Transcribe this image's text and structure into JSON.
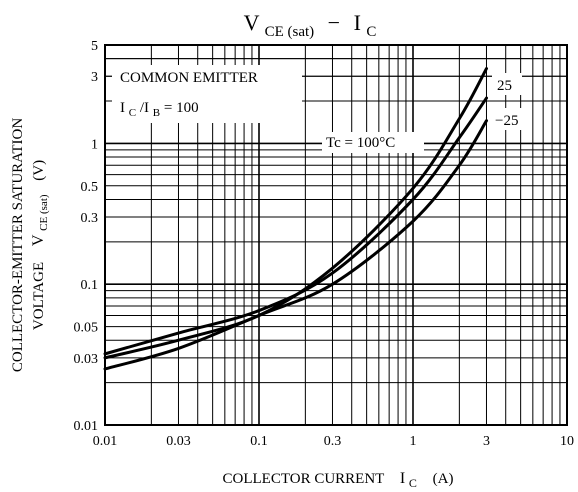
{
  "chart_data": {
    "type": "line",
    "title": {
      "main": "V",
      "subscript": "CE (sat)",
      "separator": "−",
      "second_main": "I",
      "second_subscript": "C"
    },
    "xlabel": {
      "text": "COLLECTOR CURRENT",
      "symbol_main": "I",
      "symbol_subscript": "C",
      "unit": "(A)"
    },
    "ylabel": {
      "line1": "COLLECTOR-EMITTER SATURATION",
      "line2_prefix": "VOLTAGE",
      "symbol_main": "V",
      "symbol_subscript": "CE (sat)",
      "unit": "(V)"
    },
    "x_scale": "log",
    "y_scale": "log",
    "xlim": [
      0.01,
      10
    ],
    "ylim": [
      0.01,
      5
    ],
    "x_ticks": [
      0.01,
      0.03,
      0.1,
      0.3,
      1,
      3,
      10
    ],
    "x_tick_labels": [
      "0.01",
      "0.03",
      "0.1",
      "0.3",
      "1",
      "3",
      "10"
    ],
    "y_ticks": [
      0.01,
      0.03,
      0.05,
      0.1,
      0.3,
      0.5,
      1,
      3,
      5
    ],
    "y_tick_labels": [
      "0.01",
      "0.03",
      "0.05",
      "0.1",
      "0.3",
      "0.5",
      "1",
      "3",
      "5"
    ],
    "grid": true,
    "annotations": {
      "common_emitter": "COMMON EMITTER",
      "ic_ib_main": "I",
      "ic_ib_sub1": "C",
      "ic_ib_sep": "/I",
      "ic_ib_sub2": "B",
      "ic_ib_value": " = 100",
      "tc_label": "Tc = 100°C",
      "label_25": "25",
      "label_m25": "−25"
    },
    "series": [
      {
        "name": "Tc = 100°C",
        "x": [
          0.01,
          0.03,
          0.1,
          0.3,
          1,
          2,
          3
        ],
        "y": [
          0.03,
          0.04,
          0.06,
          0.13,
          0.48,
          1.5,
          3.4
        ]
      },
      {
        "name": "25",
        "x": [
          0.01,
          0.03,
          0.1,
          0.3,
          1,
          2,
          3
        ],
        "y": [
          0.032,
          0.045,
          0.065,
          0.12,
          0.4,
          1.1,
          2.1
        ]
      },
      {
        "name": "−25",
        "x": [
          0.01,
          0.03,
          0.1,
          0.3,
          1,
          2,
          3
        ],
        "y": [
          0.025,
          0.035,
          0.06,
          0.1,
          0.28,
          0.7,
          1.45
        ]
      }
    ]
  }
}
